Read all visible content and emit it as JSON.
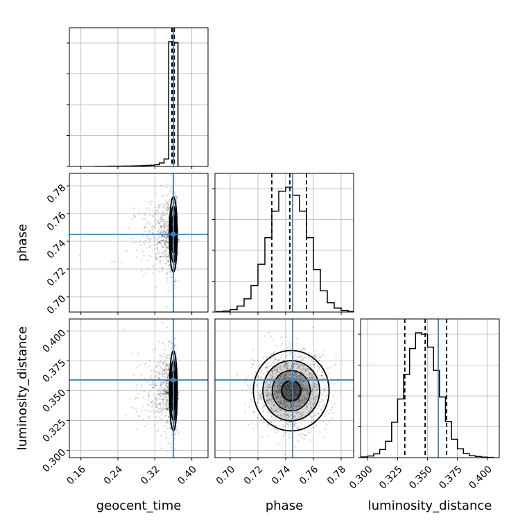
{
  "chart_data": {
    "type": "corner",
    "params": [
      "geocent_time",
      "phase",
      "luminosity_distance"
    ],
    "axis_labels": {
      "x": [
        "geocent_time",
        "phase",
        "luminosity_distance"
      ],
      "y_row1": "phase",
      "y_row2": "luminosity_distance"
    },
    "ranges": {
      "geocent_time": [
        0.135,
        0.435
      ],
      "phase": [
        0.689,
        0.789
      ],
      "luminosity_distance": [
        0.294,
        0.41
      ]
    },
    "ticks": {
      "geocent_time": [
        "0.16",
        "0.24",
        "0.32",
        "0.40"
      ],
      "phase": [
        "0.70",
        "0.72",
        "0.74",
        "0.76",
        "0.78"
      ],
      "luminosity_distance": [
        "0.300",
        "0.325",
        "0.350",
        "0.375",
        "0.400"
      ]
    },
    "truths": {
      "geocent_time": 0.36,
      "phase": 0.745,
      "luminosity_distance": 0.359
    },
    "quantiles": {
      "geocent_time": [
        0.357,
        0.359,
        0.362
      ],
      "phase": [
        0.73,
        0.743,
        0.755
      ],
      "luminosity_distance": [
        0.331,
        0.348,
        0.366
      ]
    },
    "histograms": {
      "geocent_time": {
        "edges": [
          0.19,
          0.2,
          0.21,
          0.22,
          0.23,
          0.24,
          0.25,
          0.26,
          0.27,
          0.28,
          0.29,
          0.3,
          0.31,
          0.32,
          0.33,
          0.34,
          0.35,
          0.36,
          0.37
        ],
        "counts": [
          0,
          1,
          1,
          2,
          2,
          2,
          3,
          3,
          4,
          5,
          6,
          8,
          10,
          14,
          28,
          60,
          1000,
          990
        ]
      },
      "phase": {
        "edges": [
          0.69,
          0.695,
          0.7,
          0.705,
          0.71,
          0.715,
          0.72,
          0.725,
          0.73,
          0.735,
          0.74,
          0.745,
          0.75,
          0.755,
          0.76,
          0.765,
          0.77,
          0.775,
          0.78,
          0.785,
          0.789
        ],
        "counts": [
          3,
          8,
          18,
          45,
          100,
          200,
          360,
          560,
          760,
          910,
          940,
          880,
          760,
          560,
          320,
          160,
          70,
          30,
          12,
          4
        ]
      },
      "luminosity_distance": {
        "edges": [
          0.294,
          0.3,
          0.305,
          0.31,
          0.315,
          0.32,
          0.325,
          0.33,
          0.335,
          0.34,
          0.345,
          0.35,
          0.355,
          0.36,
          0.365,
          0.37,
          0.375,
          0.38,
          0.385,
          0.39,
          0.395,
          0.4,
          0.405
        ],
        "counts": [
          5,
          12,
          28,
          60,
          120,
          260,
          430,
          610,
          800,
          915,
          905,
          810,
          640,
          445,
          265,
          135,
          65,
          30,
          14,
          8,
          4,
          2
        ]
      }
    },
    "contours": {
      "geocent_time_phase": {
        "center": [
          0.36,
          0.745
        ],
        "sigma": [
          0.004,
          0.013
        ],
        "levels_sigma": [
          0.5,
          1.0,
          1.5,
          2.0
        ]
      },
      "geocent_time_luminosity_distance": {
        "center": [
          0.36,
          0.35
        ],
        "sigma": [
          0.004,
          0.016
        ],
        "levels_sigma": [
          0.5,
          1.0,
          1.5,
          2.0
        ]
      },
      "phase_luminosity_distance": {
        "center": [
          0.744,
          0.35
        ],
        "sigma": [
          0.013,
          0.016
        ],
        "levels_sigma": [
          0.5,
          1.0,
          1.5,
          2.0
        ]
      }
    },
    "colors": {
      "truth": "#4682b4",
      "contour": "#000000",
      "grid": "#b0b0b0"
    },
    "grid": true
  }
}
